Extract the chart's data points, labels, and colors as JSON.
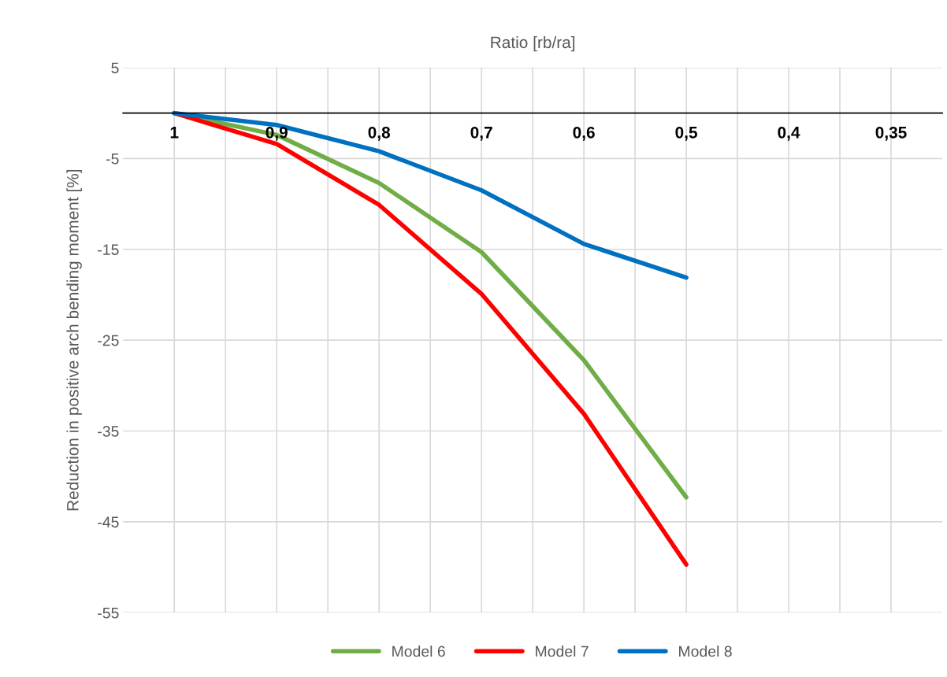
{
  "chart_data": {
    "type": "line",
    "xlabel": "Ratio [rb/ra]",
    "ylabel": "Reduction in positive arch bending moment [%]",
    "categories": [
      "1",
      "0,9",
      "0,8",
      "0,7",
      "0,6",
      "0,5",
      "0,4",
      "0,35"
    ],
    "series": [
      {
        "name": "Model 6",
        "color": "#70ad47",
        "values": [
          0,
          -2.4,
          -7.7,
          -15.3,
          -27.2,
          -42.3,
          null,
          null
        ]
      },
      {
        "name": "Model 7",
        "color": "#ff0000",
        "values": [
          0,
          -3.4,
          -10.1,
          -19.9,
          -33.1,
          -49.7,
          null,
          null
        ]
      },
      {
        "name": "Model 8",
        "color": "#0070c0",
        "values": [
          0,
          -1.3,
          -4.2,
          -8.5,
          -14.4,
          -18.1,
          null,
          null
        ]
      }
    ],
    "ylim": [
      -55,
      5
    ],
    "yticks": [
      -55,
      -45,
      -35,
      -25,
      -15,
      -5,
      5
    ],
    "grid": true,
    "legend": "bottom",
    "marker": "none",
    "line_style": "solid"
  }
}
